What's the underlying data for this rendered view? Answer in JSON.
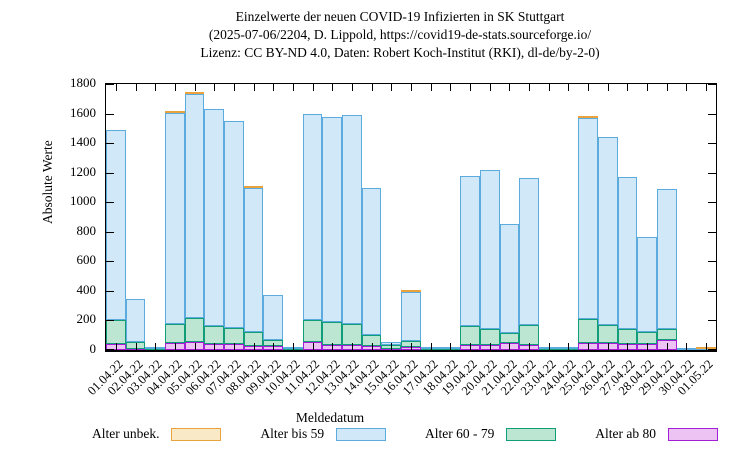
{
  "title": {
    "line1": "Einzelwerte der neuen COVID-19 Infizierten in SK Stuttgart",
    "line2": "(2025-07-06/2204, D. Lippold, https://covid19-de-stats.sourceforge.io/",
    "line3": "Lizenz: CC BY-ND 4.0, Daten: Robert Koch-Institut (RKI), dl-de/by-2-0)"
  },
  "axes": {
    "y_label": "Absolute Werte",
    "x_label": "Meldedatum",
    "y_ticks": [
      0,
      200,
      400,
      600,
      800,
      1000,
      1200,
      1400,
      1600,
      1800
    ],
    "y_max": 1800
  },
  "legend": [
    {
      "label": "Alter unbek.",
      "fill": "#f9e9c6",
      "stroke": "#e9a23c"
    },
    {
      "label": "Alter bis 59",
      "fill": "#d0e8f8",
      "stroke": "#5cabdf"
    },
    {
      "label": "Alter 60 - 79",
      "fill": "#bde6d2",
      "stroke": "#109d77"
    },
    {
      "label": "Alter ab 80",
      "fill": "#ecc3f3",
      "stroke": "#a21fd6"
    }
  ],
  "chart_data": {
    "type": "bar",
    "stacked": true,
    "title": "Einzelwerte der neuen COVID-19 Infizierten in SK Stuttgart",
    "xlabel": "Meldedatum",
    "ylabel": "Absolute Werte",
    "ylim": [
      0,
      1800
    ],
    "grid": false,
    "legend_position": "bottom",
    "stack_order_bottom_to_top": [
      "Alter ab 80",
      "Alter 60 - 79",
      "Alter bis 59",
      "Alter unbek."
    ],
    "categories": [
      "01.04.22",
      "02.04.22",
      "03.04.22",
      "04.04.22",
      "05.04.22",
      "06.04.22",
      "07.04.22",
      "08.04.22",
      "09.04.22",
      "10.04.22",
      "11.04.22",
      "12.04.22",
      "13.04.22",
      "14.04.22",
      "15.04.22",
      "16.04.22",
      "17.04.22",
      "18.04.22",
      "19.04.22",
      "20.04.22",
      "21.04.22",
      "22.04.22",
      "23.04.22",
      "24.04.22",
      "25.04.22",
      "26.04.22",
      "27.04.22",
      "28.04.22",
      "29.04.22",
      "30.04.22",
      "01.05.22"
    ],
    "series": [
      {
        "name": "Alter ab 80",
        "fill": "#ecc3f3",
        "stroke": "#a21fd6",
        "values": [
          40,
          10,
          2,
          45,
          55,
          40,
          40,
          30,
          25,
          2,
          55,
          35,
          35,
          30,
          5,
          22,
          2,
          2,
          35,
          35,
          45,
          35,
          2,
          2,
          45,
          45,
          40,
          40,
          65,
          1,
          1
        ]
      },
      {
        "name": "Alter 60 - 79",
        "fill": "#bde6d2",
        "stroke": "#109d77",
        "values": [
          160,
          45,
          3,
          130,
          165,
          125,
          110,
          90,
          45,
          3,
          145,
          155,
          140,
          70,
          30,
          40,
          3,
          3,
          125,
          105,
          70,
          135,
          5,
          3,
          165,
          125,
          100,
          80,
          80,
          2,
          2
        ]
      },
      {
        "name": "Alter bis 59",
        "fill": "#d0e8f8",
        "stroke": "#5cabdf",
        "values": [
          1290,
          290,
          10,
          1430,
          1515,
          1465,
          1400,
          975,
          300,
          7,
          1395,
          1390,
          1415,
          995,
          20,
          330,
          10,
          7,
          1015,
          1075,
          735,
          995,
          12,
          7,
          1360,
          1270,
          1030,
          645,
          945,
          7,
          5
        ]
      },
      {
        "name": "Alter unbek.",
        "fill": "#f9e9c6",
        "stroke": "#e9a23c",
        "values": [
          0,
          0,
          0,
          5,
          5,
          0,
          0,
          5,
          0,
          0,
          0,
          0,
          0,
          0,
          0,
          3,
          0,
          0,
          0,
          0,
          0,
          0,
          0,
          0,
          5,
          0,
          0,
          0,
          0,
          0,
          2
        ]
      }
    ],
    "totals": [
      1490,
      345,
      15,
      1610,
      1740,
      1630,
      1550,
      1100,
      370,
      12,
      1595,
      1580,
      1590,
      1095,
      55,
      395,
      15,
      12,
      1175,
      1215,
      850,
      1165,
      19,
      12,
      1575,
      1440,
      1170,
      765,
      1090,
      10,
      10
    ]
  }
}
